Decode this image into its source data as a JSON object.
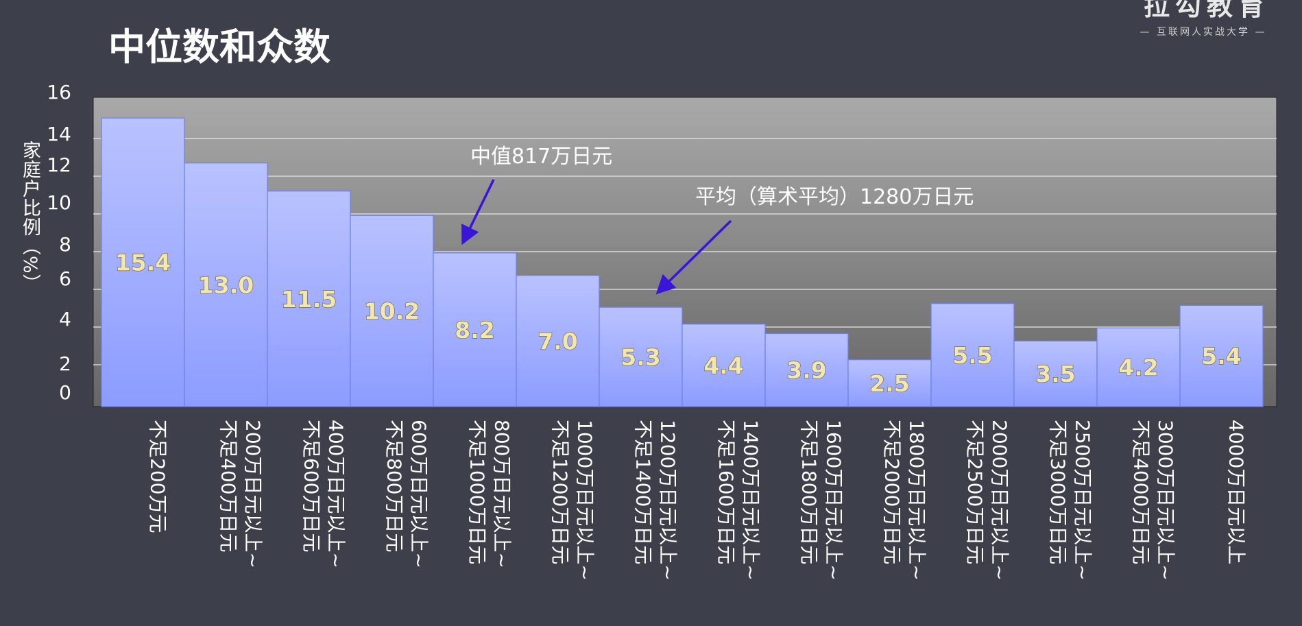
{
  "title": "中位数和众数",
  "logo": {
    "main": "拉勾教育",
    "sub": "— 互联网人实战大学 —"
  },
  "chart_data": {
    "type": "bar",
    "ylabel": "家庭户比例（%）",
    "xlabel": "",
    "ylim": [
      0,
      16
    ],
    "yticks": [
      0,
      2,
      4,
      6,
      8,
      10,
      12,
      14,
      16
    ],
    "grid": true,
    "categories": [
      "不足200万元",
      "200万日元以上~不足400万日元",
      "400万日元以上~不足600万日元",
      "600万日元以上~不足800万日元",
      "800万日元以上~不足1000万日元",
      "1000万日元以上~不足1200万日元",
      "1200万日元以上~不足1400万日元",
      "1400万日元以上~不足1600万日元",
      "1600万日元以上~不足1800万日元",
      "1800万日元以上~不足2000万日元",
      "2000万日元以上~不足2500万日元",
      "2500万日元以上~不足3000万日元",
      "3000万日元以上~不足4000万日元",
      "4000万日元以上"
    ],
    "values": [
      15.4,
      13.0,
      11.5,
      10.2,
      8.2,
      7.0,
      5.3,
      4.4,
      3.9,
      2.5,
      5.5,
      3.5,
      4.2,
      5.4
    ],
    "value_labels": [
      "15.4",
      "13.0",
      "11.5",
      "10.2",
      "8.2",
      "7.0",
      "5.3",
      "4.4",
      "3.9",
      "2.5",
      "5.5",
      "3.5",
      "4.2",
      "5.4"
    ],
    "annotations": [
      {
        "text": "中值817万日元",
        "bar_index": 4
      },
      {
        "text": "平均（算术平均）1280万日元",
        "bar_index": 6
      }
    ],
    "colors": {
      "bar_top": "#b9c2ff",
      "bar_bottom": "#8c9cff",
      "bar_edge": "#6f7fe6",
      "plot_bg_top": "#a9a9a9",
      "plot_bg_bottom": "#666666",
      "arrow": "#3a14d8",
      "value_label": "#f3e7b0"
    }
  }
}
